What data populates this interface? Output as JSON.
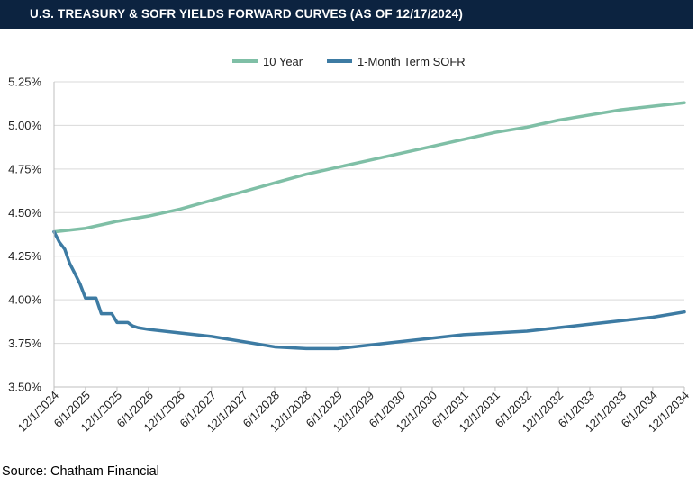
{
  "title": "U.S. TREASURY & SOFR YIELDS FORWARD CURVES (AS OF 12/17/2024)",
  "source": "Source: Chatham Financial",
  "colors": {
    "title_bg": "#0c2340",
    "ten_year": "#7fbfa6",
    "sofr": "#3d7ba3",
    "grid": "#d9d9d9"
  },
  "chart_data": {
    "type": "line",
    "title": "U.S. TREASURY & SOFR YIELDS FORWARD CURVES (AS OF 12/17/2024)",
    "xlabel": "",
    "ylabel": "",
    "ylim": [
      3.5,
      5.25
    ],
    "grid": true,
    "legend_position": "top-center",
    "y_ticks": [
      "3.50%",
      "3.75%",
      "4.00%",
      "4.25%",
      "4.50%",
      "4.75%",
      "5.00%",
      "5.25%"
    ],
    "x_ticks": [
      "12/1/2024",
      "6/1/2025",
      "12/1/2025",
      "6/1/2026",
      "12/1/2026",
      "6/1/2027",
      "12/1/2027",
      "6/1/2028",
      "12/1/2028",
      "6/1/2029",
      "12/1/2029",
      "6/1/2030",
      "12/1/2030",
      "6/1/2031",
      "12/1/2031",
      "6/1/2032",
      "12/1/2032",
      "6/1/2033",
      "12/1/2033",
      "6/1/2034",
      "12/1/2034"
    ],
    "series": [
      {
        "name": "10 Year",
        "color": "#7fbfa6",
        "x": [
          "12/1/2024",
          "6/1/2025",
          "12/1/2025",
          "6/1/2026",
          "12/1/2026",
          "6/1/2027",
          "12/1/2027",
          "6/1/2028",
          "12/1/2028",
          "6/1/2029",
          "12/1/2029",
          "6/1/2030",
          "12/1/2030",
          "6/1/2031",
          "12/1/2031",
          "6/1/2032",
          "12/1/2032",
          "6/1/2033",
          "12/1/2033",
          "6/1/2034",
          "12/1/2034"
        ],
        "values": [
          4.39,
          4.41,
          4.45,
          4.48,
          4.52,
          4.57,
          4.62,
          4.67,
          4.72,
          4.76,
          4.8,
          4.84,
          4.88,
          4.92,
          4.96,
          4.99,
          5.03,
          5.06,
          5.09,
          5.11,
          5.13
        ]
      },
      {
        "name": "1-Month Term SOFR",
        "color": "#3d7ba3",
        "x": [
          "12/1/2024",
          "1/1/2025",
          "2/1/2025",
          "3/1/2025",
          "4/1/2025",
          "5/1/2025",
          "6/1/2025",
          "7/1/2025",
          "8/1/2025",
          "9/1/2025",
          "10/1/2025",
          "11/1/2025",
          "12/1/2025",
          "1/1/2026",
          "2/1/2026",
          "3/1/2026",
          "4/1/2026",
          "6/1/2026",
          "12/1/2026",
          "6/1/2027",
          "12/1/2027",
          "6/1/2028",
          "12/1/2028",
          "6/1/2029",
          "12/1/2029",
          "6/1/2030",
          "12/1/2030",
          "6/1/2031",
          "12/1/2031",
          "6/1/2032",
          "12/1/2032",
          "6/1/2033",
          "12/1/2033",
          "6/1/2034",
          "12/1/2034"
        ],
        "values": [
          4.39,
          4.33,
          4.29,
          4.21,
          4.15,
          4.09,
          4.01,
          4.01,
          4.01,
          3.92,
          3.92,
          3.92,
          3.87,
          3.87,
          3.87,
          3.85,
          3.84,
          3.83,
          3.81,
          3.79,
          3.76,
          3.73,
          3.72,
          3.72,
          3.74,
          3.76,
          3.78,
          3.8,
          3.81,
          3.82,
          3.84,
          3.86,
          3.88,
          3.9,
          3.93
        ]
      }
    ]
  }
}
